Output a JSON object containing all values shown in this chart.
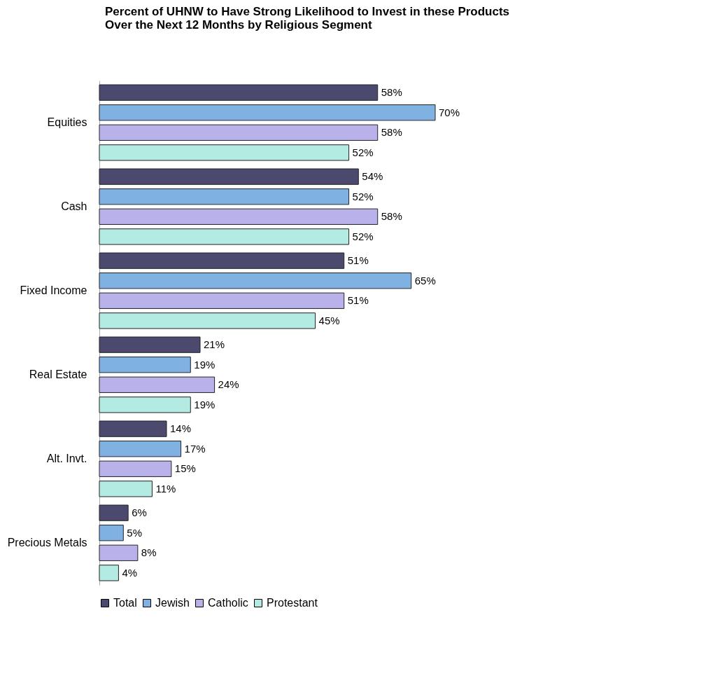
{
  "chart_data": {
    "type": "bar",
    "orientation": "horizontal",
    "title": "Percent of UHNW to Have Strong Likelihood to Invest in these Products\nOver the Next 12 Months by Religious Segment",
    "categories": [
      "Equities",
      "Cash",
      "Fixed Income",
      "Real Estate",
      "Alt. Invt.",
      "Precious Metals"
    ],
    "series": [
      {
        "name": "Total",
        "color": "#4b4a6e",
        "values": [
          58,
          54,
          51,
          21,
          14,
          6
        ],
        "value_labels": [
          "58%",
          "54%",
          "51%",
          "21%",
          "14%",
          "6%"
        ]
      },
      {
        "name": "Jewish",
        "color": "#7fb2e2",
        "values": [
          70,
          52,
          65,
          19,
          17,
          5
        ],
        "value_labels": [
          "70%",
          "52%",
          "65%",
          "19%",
          "17%",
          "5%"
        ]
      },
      {
        "name": "Catholic",
        "color": "#b9b2ea",
        "values": [
          58,
          58,
          51,
          24,
          15,
          8
        ],
        "value_labels": [
          "58%",
          "58%",
          "51%",
          "24%",
          "15%",
          "8%"
        ]
      },
      {
        "name": "Protestant",
        "color": "#b3eae2",
        "values": [
          52,
          52,
          45,
          19,
          11,
          4
        ],
        "value_labels": [
          "52%",
          "52%",
          "45%",
          "19%",
          "11%",
          "4%"
        ]
      }
    ],
    "legend": "bottom"
  }
}
